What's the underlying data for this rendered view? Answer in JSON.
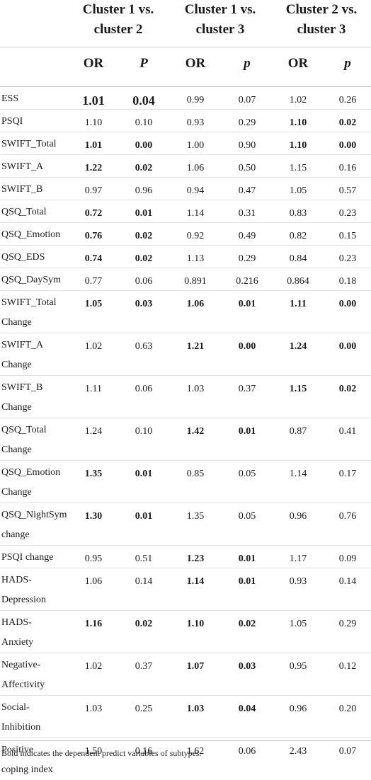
{
  "headers": {
    "groups": [
      "Cluster 1 vs. cluster 2",
      "Cluster 1 vs. cluster 3",
      "Cluster 2 vs. cluster 3"
    ],
    "group_lines": [
      [
        "Cluster 1 vs.",
        "cluster 2"
      ],
      [
        "Cluster 1 vs.",
        "cluster 3"
      ],
      [
        "Cluster 2 vs.",
        "cluster 3"
      ]
    ],
    "sub": [
      "OR",
      "P",
      "OR",
      "p",
      "OR",
      "p"
    ]
  },
  "rows": [
    {
      "label": [
        "ESS"
      ],
      "values": [
        "1.01",
        "0.04",
        "0.99",
        "0.07",
        "1.02",
        "0.26"
      ],
      "bold": [
        true,
        true,
        false,
        false,
        false,
        false
      ],
      "big": [
        true,
        true,
        false,
        false,
        false,
        false
      ]
    },
    {
      "label": [
        "PSQI"
      ],
      "values": [
        "1.10",
        "0.10",
        "0.93",
        "0.29",
        "1.10",
        "0.02"
      ],
      "bold": [
        false,
        false,
        false,
        false,
        true,
        true
      ]
    },
    {
      "label": [
        "SWIFT_Total"
      ],
      "values": [
        "1.01",
        "0.00",
        "1.00",
        "0.90",
        "1.10",
        "0.00"
      ],
      "bold": [
        true,
        true,
        false,
        false,
        true,
        true
      ]
    },
    {
      "label": [
        "SWIFT_A"
      ],
      "values": [
        "1.22",
        "0.02",
        "1.06",
        "0.50",
        "1.15",
        "0.16"
      ],
      "bold": [
        true,
        true,
        false,
        false,
        false,
        false
      ]
    },
    {
      "label": [
        "SWIFT_B"
      ],
      "values": [
        "0.97",
        "0.96",
        "0.94",
        "0.47",
        "1.05",
        "0.57"
      ],
      "bold": [
        false,
        false,
        false,
        false,
        false,
        false
      ]
    },
    {
      "label": [
        "QSQ_Total"
      ],
      "values": [
        "0.72",
        "0.01",
        "1.14",
        "0.31",
        "0.83",
        "0.23"
      ],
      "bold": [
        true,
        true,
        false,
        false,
        false,
        false
      ]
    },
    {
      "label": [
        "QSQ_Emotion"
      ],
      "values": [
        "0.76",
        "0.02",
        "0.92",
        "0.49",
        "0.82",
        "0.15"
      ],
      "bold": [
        true,
        true,
        false,
        false,
        false,
        false
      ]
    },
    {
      "label": [
        "QSQ_EDS"
      ],
      "values": [
        "0.74",
        "0.02",
        "1.13",
        "0.29",
        "0.84",
        "0.23"
      ],
      "bold": [
        true,
        true,
        false,
        false,
        false,
        false
      ]
    },
    {
      "label": [
        "QSQ_DaySym"
      ],
      "values": [
        "0.77",
        "0.06",
        "0.891",
        "0.216",
        "0.864",
        "0.18"
      ],
      "bold": [
        false,
        false,
        false,
        false,
        false,
        false
      ]
    },
    {
      "label": [
        "SWIFT_Total",
        "Change"
      ],
      "values": [
        "1.05",
        "0.03",
        "1.06",
        "0.01",
        "1.11",
        "0.00"
      ],
      "bold": [
        true,
        true,
        true,
        true,
        true,
        true
      ]
    },
    {
      "label": [
        "SWIFT_A",
        "Change"
      ],
      "values": [
        "1.02",
        "0.63",
        "1.21",
        "0.00",
        "1.24",
        "0.00"
      ],
      "bold": [
        false,
        false,
        true,
        true,
        true,
        true
      ]
    },
    {
      "label": [
        "SWIFT_B",
        "Change"
      ],
      "values": [
        "1.11",
        "0.06",
        "1.03",
        "0.37",
        "1.15",
        "0.02"
      ],
      "bold": [
        false,
        false,
        false,
        false,
        true,
        true
      ]
    },
    {
      "label": [
        "QSQ_Total",
        "Change"
      ],
      "values": [
        "1.24",
        "0.10",
        "1.42",
        "0.01",
        "0.87",
        "0.41"
      ],
      "bold": [
        false,
        false,
        true,
        true,
        false,
        false
      ]
    },
    {
      "label": [
        "QSQ_Emotion",
        "Change"
      ],
      "values": [
        "1.35",
        "0.01",
        "0.85",
        "0.05",
        "1.14",
        "0.17"
      ],
      "bold": [
        true,
        true,
        false,
        false,
        false,
        false
      ]
    },
    {
      "label": [
        "QSQ_NightSym",
        "change"
      ],
      "values": [
        "1.30",
        "0.01",
        "1.35",
        "0.05",
        "0.96",
        "0.76"
      ],
      "bold": [
        true,
        true,
        false,
        false,
        false,
        false
      ]
    },
    {
      "label": [
        "PSQI change"
      ],
      "values": [
        "0.95",
        "0.51",
        "1.23",
        "0.01",
        "1.17",
        "0.09"
      ],
      "bold": [
        false,
        false,
        true,
        true,
        false,
        false
      ]
    },
    {
      "label": [
        "HADS-",
        "Depression"
      ],
      "values": [
        "1.06",
        "0.14",
        "1.14",
        "0.01",
        "0.93",
        "0.14"
      ],
      "bold": [
        false,
        false,
        true,
        true,
        false,
        false
      ]
    },
    {
      "label": [
        "HADS-",
        "Anxiety"
      ],
      "values": [
        "1.16",
        "0.02",
        "1.10",
        "0.02",
        "1.05",
        "0.29"
      ],
      "bold": [
        true,
        true,
        true,
        true,
        false,
        false
      ]
    },
    {
      "label": [
        "Negative-",
        "Affectivity"
      ],
      "values": [
        "1.02",
        "0.37",
        "1.07",
        "0.03",
        "0.95",
        "0.12"
      ],
      "bold": [
        false,
        false,
        true,
        true,
        false,
        false
      ]
    },
    {
      "label": [
        "Social-",
        "Inhibition"
      ],
      "values": [
        "1.03",
        "0.25",
        "1.03",
        "0.04",
        "0.96",
        "0.20"
      ],
      "bold": [
        false,
        false,
        true,
        true,
        false,
        false
      ]
    },
    {
      "label": [
        "Positive",
        "coping index"
      ],
      "values": [
        "1.50",
        "0.16",
        "1.62",
        "0.06",
        "2.43",
        "0.07"
      ],
      "bold": [
        false,
        false,
        false,
        false,
        false,
        false
      ]
    }
  ],
  "footnote": "Bold indicates the dependent predict variables of subtypes."
}
